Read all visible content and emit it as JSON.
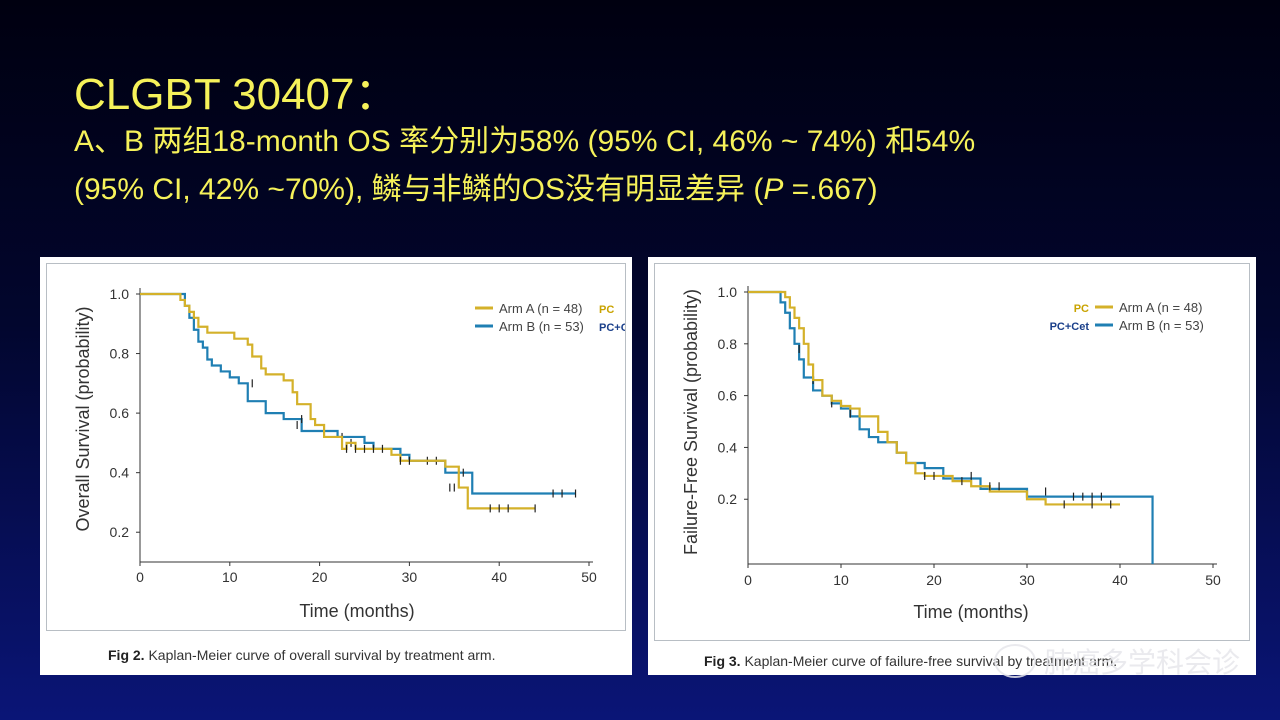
{
  "slide": {
    "title": "CLGBT 30407：",
    "subtitle_line1": "A、B 两组18-month OS 率分别为58% (95% CI, 46% ~ 74%) 和54%",
    "subtitle_line2_pre": "(95% CI, 42% ~70%), 鳞与非鳞的OS没有明显差异 (",
    "subtitle_line2_p": "P",
    "subtitle_line2_post": " =.667)"
  },
  "watermark": {
    "text": "肺癌多学科会诊",
    "icon": "wechat-icon"
  },
  "colors": {
    "arm_a": "#d4b12a",
    "arm_b": "#1f7fb3",
    "censor": "#222222",
    "axis": "#333333"
  },
  "figures": [
    {
      "caption_label": "Fig 2.",
      "caption_text": " Kaplan-Meier curve of overall survival by treatment arm.",
      "legend": [
        {
          "label": "Arm A (n = 48)",
          "annotation": "PC"
        },
        {
          "label": "Arm B (n = 53)",
          "annotation": "PC+Cet"
        }
      ]
    },
    {
      "caption_label": "Fig 3.",
      "caption_text": " Kaplan-Meier curve of failure-free survival by treatment arm.",
      "legend": [
        {
          "label": "Arm A (n = 48)",
          "annotation": "PC"
        },
        {
          "label": "Arm B (n = 53)",
          "annotation": "PC+Cet"
        }
      ]
    }
  ],
  "chart_data": [
    {
      "type": "line",
      "title": "Kaplan-Meier curve of overall survival by treatment arm",
      "xlabel": "Time (months)",
      "ylabel": "Overall Survival (probability)",
      "xlim": [
        0,
        50
      ],
      "ylim": [
        0.1,
        1.0
      ],
      "xticks": [
        0,
        10,
        20,
        30,
        40,
        50
      ],
      "yticks": [
        0.2,
        0.4,
        0.6,
        0.8,
        1.0
      ],
      "ytick_labels": [
        "0.2",
        "0.4",
        "0.6",
        "0.8",
        "1.0"
      ],
      "series": [
        {
          "name": "Arm A (n = 48)",
          "step": true,
          "x": [
            0,
            4,
            4.5,
            5,
            5.5,
            6,
            6.5,
            7.5,
            10.5,
            12,
            12.5,
            13.5,
            14,
            16,
            17,
            17.5,
            19,
            19.5,
            20.5,
            22.5,
            23,
            24,
            28,
            29,
            34,
            35.5,
            36.5,
            44
          ],
          "y": [
            1.0,
            1.0,
            0.98,
            0.96,
            0.94,
            0.92,
            0.89,
            0.87,
            0.85,
            0.83,
            0.79,
            0.75,
            0.73,
            0.71,
            0.67,
            0.63,
            0.58,
            0.56,
            0.52,
            0.48,
            0.5,
            0.48,
            0.46,
            0.44,
            0.42,
            0.35,
            0.28,
            0.28
          ],
          "censored": [
            [
              18,
              0.58
            ],
            [
              23,
              0.48
            ],
            [
              24,
              0.48
            ],
            [
              25,
              0.48
            ],
            [
              26,
              0.48
            ],
            [
              27,
              0.48
            ],
            [
              29,
              0.44
            ],
            [
              30,
              0.44
            ],
            [
              34.5,
              0.35
            ],
            [
              35,
              0.35
            ],
            [
              39,
              0.28
            ],
            [
              40,
              0.28
            ],
            [
              41,
              0.28
            ],
            [
              44,
              0.28
            ]
          ]
        },
        {
          "name": "Arm B (n = 53)",
          "step": true,
          "x": [
            0,
            3.5,
            5,
            5.5,
            6,
            6.5,
            7,
            7.5,
            8,
            9,
            10,
            11,
            12,
            14,
            16,
            18,
            22,
            25,
            26,
            29,
            30,
            33,
            34,
            36,
            37,
            48.5
          ],
          "y": [
            1.0,
            1.0,
            0.96,
            0.92,
            0.88,
            0.84,
            0.82,
            0.78,
            0.76,
            0.74,
            0.72,
            0.7,
            0.64,
            0.6,
            0.58,
            0.54,
            0.52,
            0.5,
            0.48,
            0.46,
            0.44,
            0.44,
            0.4,
            0.4,
            0.33,
            0.33
          ],
          "censored": [
            [
              12.5,
              0.7
            ],
            [
              17.5,
              0.56
            ],
            [
              22.5,
              0.52
            ],
            [
              23.5,
              0.5
            ],
            [
              32,
              0.44
            ],
            [
              33,
              0.44
            ],
            [
              36,
              0.4
            ],
            [
              46,
              0.33
            ],
            [
              47,
              0.33
            ],
            [
              48.5,
              0.33
            ]
          ]
        }
      ]
    },
    {
      "type": "line",
      "title": "Kaplan-Meier curve of failure-free survival by treatment arm",
      "xlabel": "Time (months)",
      "ylabel": "Failure-Free Survival (probability)",
      "xlim": [
        0,
        50
      ],
      "ylim": [
        -0.05,
        1.0
      ],
      "xticks": [
        0,
        10,
        20,
        30,
        40,
        50
      ],
      "yticks": [
        0.2,
        0.4,
        0.6,
        0.8,
        1.0
      ],
      "ytick_labels": [
        "0.2",
        "0.4",
        "0.6",
        "0.8",
        "1.0"
      ],
      "series": [
        {
          "name": "Arm A (n = 48)",
          "step": true,
          "x": [
            0,
            3.5,
            4,
            4.5,
            5,
            5.5,
            6,
            6.5,
            7,
            8,
            9,
            10,
            11,
            12,
            14,
            15,
            16,
            17,
            18,
            19,
            22,
            24,
            26,
            30,
            32,
            40
          ],
          "y": [
            1.0,
            1.0,
            0.98,
            0.94,
            0.9,
            0.86,
            0.8,
            0.72,
            0.66,
            0.6,
            0.58,
            0.56,
            0.55,
            0.52,
            0.46,
            0.42,
            0.38,
            0.34,
            0.3,
            0.29,
            0.27,
            0.25,
            0.23,
            0.2,
            0.18,
            0.18
          ],
          "censored": [
            [
              19,
              0.29
            ],
            [
              20,
              0.29
            ],
            [
              23,
              0.27
            ],
            [
              26,
              0.25
            ],
            [
              27,
              0.25
            ],
            [
              34,
              0.18
            ],
            [
              37,
              0.18
            ],
            [
              39,
              0.18
            ]
          ]
        },
        {
          "name": "Arm B (n = 53)",
          "step": true,
          "x": [
            0,
            3,
            3.5,
            4,
            4.5,
            5,
            5.5,
            6,
            7,
            8,
            9,
            10,
            11,
            12,
            13,
            14,
            16,
            17,
            19,
            21,
            25,
            30,
            31,
            43.5,
            43.5
          ],
          "y": [
            1.0,
            1.0,
            0.96,
            0.92,
            0.86,
            0.8,
            0.74,
            0.67,
            0.62,
            0.6,
            0.57,
            0.55,
            0.52,
            0.47,
            0.44,
            0.42,
            0.38,
            0.34,
            0.32,
            0.28,
            0.24,
            0.21,
            0.21,
            0.21,
            -0.05
          ],
          "censored": [
            [
              5.5,
              0.78
            ],
            [
              7,
              0.66
            ],
            [
              9,
              0.57
            ],
            [
              11,
              0.53
            ],
            [
              24,
              0.29
            ],
            [
              32,
              0.23
            ],
            [
              35,
              0.21
            ],
            [
              36,
              0.21
            ],
            [
              37,
              0.21
            ],
            [
              38,
              0.21
            ]
          ]
        }
      ]
    }
  ]
}
